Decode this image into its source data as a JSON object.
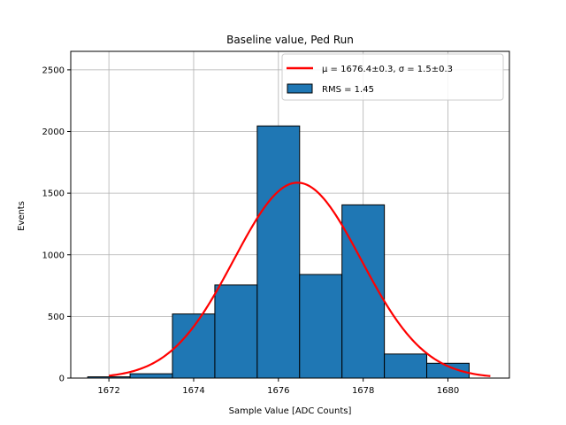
{
  "chart_data": {
    "type": "bar",
    "title": "Baseline value, Ped Run",
    "xlabel": "Sample Value [ADC Counts]",
    "ylabel": "Events",
    "xlim": [
      1671.1,
      1681.45
    ],
    "ylim": [
      0,
      2650
    ],
    "xticks": [
      1672,
      1674,
      1676,
      1678,
      1680
    ],
    "yticks": [
      0,
      500,
      1000,
      1500,
      2000,
      2500
    ],
    "grid": true,
    "legend_position": "top-right",
    "bins": [
      {
        "x0": 1671.5,
        "x1": 1672.5,
        "value": 10
      },
      {
        "x0": 1672.5,
        "x1": 1673.5,
        "value": 35
      },
      {
        "x0": 1673.5,
        "x1": 1674.5,
        "value": 520
      },
      {
        "x0": 1674.5,
        "x1": 1675.5,
        "value": 755
      },
      {
        "x0": 1675.5,
        "x1": 1676.5,
        "value": 2045
      },
      {
        "x0": 1676.5,
        "x1": 1677.5,
        "value": 840
      },
      {
        "x0": 1677.5,
        "x1": 1678.5,
        "value": 1405
      },
      {
        "x0": 1678.5,
        "x1": 1679.5,
        "value": 195
      },
      {
        "x0": 1679.5,
        "x1": 1680.5,
        "value": 120
      }
    ],
    "fit": {
      "name": "μ = 1676.4±0.3, σ = 1.5±0.3",
      "mu": 1676.45,
      "sigma": 1.5,
      "amplitude": 1585,
      "x_range": [
        1672,
        1681
      ],
      "color": "#ff0000"
    },
    "histogram_series": {
      "name": "RMS = 1.45",
      "color": "#1f77b4",
      "edge_color": "#000000"
    }
  }
}
